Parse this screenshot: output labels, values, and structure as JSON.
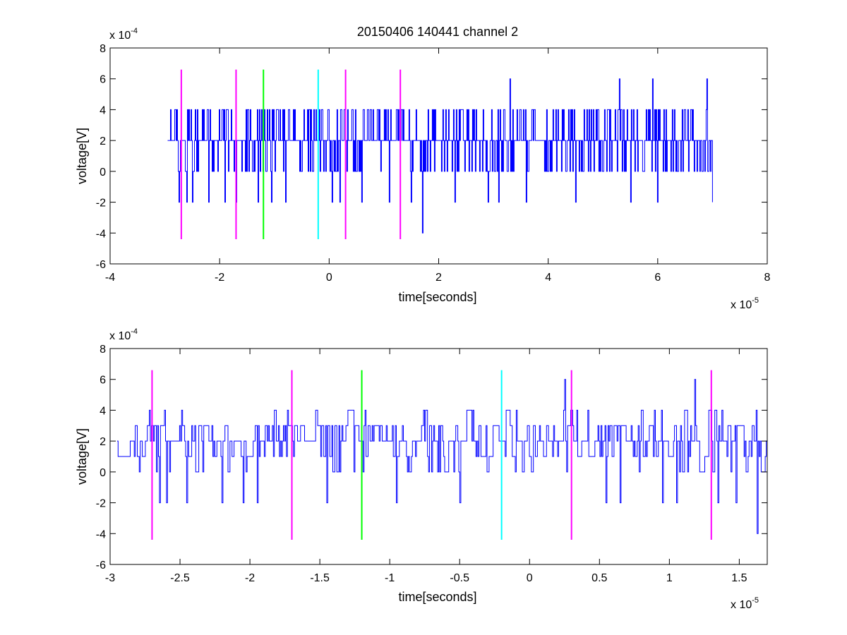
{
  "figure_title": "20150406 140441 channel 2",
  "chart_data": [
    {
      "type": "line",
      "title": "20150406 140441 channel 2",
      "xlabel": "time[seconds]",
      "ylabel": "voltage[V]",
      "x_multiplier_label": "x 10",
      "x_multiplier_exp": "-5",
      "y_multiplier_label": "x 10",
      "y_multiplier_exp": "-4",
      "xlim": [
        -4,
        8
      ],
      "ylim": [
        -6,
        8
      ],
      "xticks": [
        -4,
        -2,
        0,
        2,
        4,
        6,
        8
      ],
      "xtick_labels": [
        "-4",
        "-2",
        "0",
        "2",
        "4",
        "6",
        "8"
      ],
      "yticks": [
        -6,
        -4,
        -2,
        0,
        2,
        4,
        6,
        8
      ],
      "ytick_labels": [
        "-6",
        "-4",
        "-2",
        "0",
        "2",
        "4",
        "6",
        "8"
      ],
      "grid": false,
      "series": [
        {
          "color": "#0000ff",
          "x_start": -2.95,
          "x_end": 7.0,
          "base_pattern": [
            2,
            4,
            0,
            2,
            4,
            2,
            0,
            2,
            2,
            4,
            2,
            0,
            2,
            4,
            2,
            2,
            0,
            2,
            4,
            2,
            2,
            0,
            4,
            2,
            2,
            2,
            0,
            2,
            4,
            2
          ],
          "spikes": [
            {
              "x": -2.75,
              "y": -2
            },
            {
              "x": -2.6,
              "y": -2
            },
            {
              "x": -2.5,
              "y": -2
            },
            {
              "x": -2.2,
              "y": -2
            },
            {
              "x": -1.9,
              "y": -2
            },
            {
              "x": -1.7,
              "y": -2
            },
            {
              "x": -1.3,
              "y": -2
            },
            {
              "x": -1.05,
              "y": -2
            },
            {
              "x": -0.8,
              "y": -2
            },
            {
              "x": 0.05,
              "y": -2
            },
            {
              "x": 0.2,
              "y": -2
            },
            {
              "x": 0.6,
              "y": -2
            },
            {
              "x": 1.1,
              "y": -2
            },
            {
              "x": 1.5,
              "y": -2
            },
            {
              "x": 1.7,
              "y": -4
            },
            {
              "x": 2.3,
              "y": -2
            },
            {
              "x": 2.9,
              "y": -2
            },
            {
              "x": 3.1,
              "y": -2
            },
            {
              "x": 3.3,
              "y": 6
            },
            {
              "x": 3.6,
              "y": -2
            },
            {
              "x": 4.5,
              "y": -2
            },
            {
              "x": 5.3,
              "y": 6
            },
            {
              "x": 5.5,
              "y": -2
            },
            {
              "x": 5.9,
              "y": 6
            },
            {
              "x": 6.0,
              "y": -2
            },
            {
              "x": 6.9,
              "y": 6
            },
            {
              "x": 7.0,
              "y": -2
            }
          ]
        }
      ],
      "markers": [
        {
          "x": -2.7,
          "color": "#ff00ff"
        },
        {
          "x": -1.7,
          "color": "#ff00ff"
        },
        {
          "x": -1.2,
          "color": "#00ff00"
        },
        {
          "x": -0.2,
          "color": "#00ffff"
        },
        {
          "x": 0.3,
          "color": "#ff00ff"
        },
        {
          "x": 1.3,
          "color": "#ff00ff"
        }
      ],
      "marker_range": [
        -4.4,
        6.6
      ]
    },
    {
      "type": "line",
      "title": "",
      "xlabel": "time[seconds]",
      "ylabel": "voltage[V]",
      "x_multiplier_label": "x 10",
      "x_multiplier_exp": "-5",
      "y_multiplier_label": "x 10",
      "y_multiplier_exp": "-4",
      "xlim": [
        -3.0,
        1.7
      ],
      "ylim": [
        -6,
        8
      ],
      "xticks": [
        -3,
        -2.5,
        -2,
        -1.5,
        -1,
        -0.5,
        0,
        0.5,
        1,
        1.5
      ],
      "xtick_labels": [
        "-3",
        "-2.5",
        "-2",
        "-1.5",
        "-1",
        "-0.5",
        "0",
        "0.5",
        "1",
        "1.5"
      ],
      "yticks": [
        -6,
        -4,
        -2,
        0,
        2,
        4,
        6,
        8
      ],
      "ytick_labels": [
        "-6",
        "-4",
        "-2",
        "0",
        "2",
        "4",
        "6",
        "8"
      ],
      "grid": false,
      "series": [
        {
          "color": "#0000ff",
          "x_start": -2.95,
          "x_end": 1.7,
          "base_pattern": [
            2,
            3,
            4,
            3,
            2,
            1,
            0,
            1,
            2,
            3,
            2,
            2,
            2,
            3,
            4,
            3,
            2,
            1,
            2,
            2,
            0,
            1,
            2,
            3,
            2,
            2,
            2,
            1,
            0,
            1
          ],
          "spikes": [
            {
              "x": -2.65,
              "y": -2
            },
            {
              "x": -2.6,
              "y": -2
            },
            {
              "x": -2.45,
              "y": -2
            },
            {
              "x": -2.2,
              "y": -2
            },
            {
              "x": -2.05,
              "y": -2
            },
            {
              "x": -1.95,
              "y": -2
            },
            {
              "x": -1.45,
              "y": -2
            },
            {
              "x": -0.95,
              "y": -2
            },
            {
              "x": -0.5,
              "y": -2
            },
            {
              "x": 0.25,
              "y": 6
            },
            {
              "x": 0.55,
              "y": -2
            },
            {
              "x": 0.65,
              "y": -2
            },
            {
              "x": 0.95,
              "y": -2
            },
            {
              "x": 1.05,
              "y": -2
            },
            {
              "x": 1.18,
              "y": 6
            },
            {
              "x": 1.35,
              "y": -2
            },
            {
              "x": 1.48,
              "y": -2
            },
            {
              "x": 1.63,
              "y": -4
            }
          ]
        }
      ],
      "markers": [
        {
          "x": -2.7,
          "color": "#ff00ff"
        },
        {
          "x": -1.7,
          "color": "#ff00ff"
        },
        {
          "x": -1.2,
          "color": "#00ff00"
        },
        {
          "x": -0.2,
          "color": "#00ffff"
        },
        {
          "x": 0.3,
          "color": "#ff00ff"
        },
        {
          "x": 1.3,
          "color": "#ff00ff"
        }
      ],
      "marker_range": [
        -4.4,
        6.6
      ]
    }
  ]
}
